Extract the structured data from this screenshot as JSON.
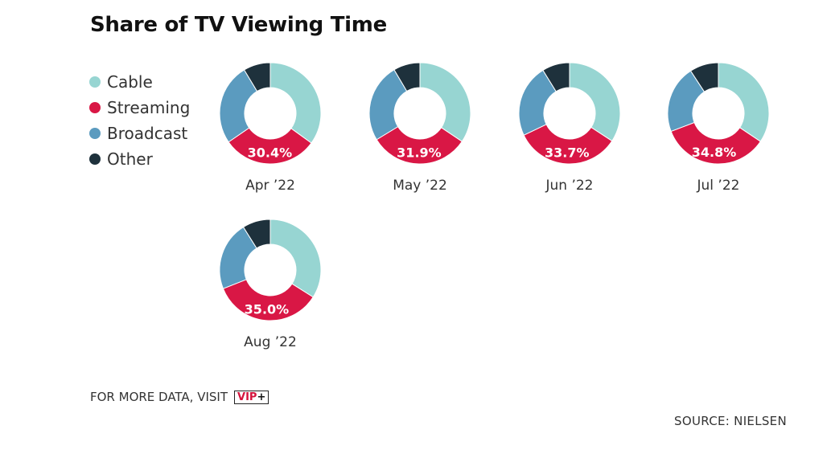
{
  "title": "Share of TV Viewing Time",
  "legend": [
    {
      "label": "Cable",
      "color": "#97d5d2"
    },
    {
      "label": "Streaming",
      "color": "#d91745"
    },
    {
      "label": "Broadcast",
      "color": "#5b9bbf"
    },
    {
      "label": "Other",
      "color": "#1e313c"
    }
  ],
  "chart_data": {
    "type": "pie",
    "style": "donut",
    "title": "Share of TV Viewing Time",
    "series_names": [
      "Cable",
      "Streaming",
      "Broadcast",
      "Other"
    ],
    "colors": [
      "#97d5d2",
      "#d91745",
      "#5b9bbf",
      "#1e313c"
    ],
    "categories": [
      "Apr ’22",
      "May ’22",
      "Jun ’22",
      "Jul ’22",
      "Aug ’22"
    ],
    "charts": [
      {
        "category": "Apr ’22",
        "values": [
          35.0,
          30.4,
          26.0,
          8.6
        ],
        "label": "30.4%"
      },
      {
        "category": "May ’22",
        "values": [
          34.4,
          31.9,
          25.2,
          8.5
        ],
        "label": "31.9%"
      },
      {
        "category": "Jun ’22",
        "values": [
          34.2,
          33.7,
          23.3,
          8.8
        ],
        "label": "33.7%"
      },
      {
        "category": "Jul ’22",
        "values": [
          34.4,
          34.8,
          21.6,
          9.2
        ],
        "label": "34.8%"
      },
      {
        "category": "Aug ’22",
        "values": [
          34.0,
          35.0,
          22.1,
          8.9
        ],
        "label": "35.0%"
      }
    ]
  },
  "footer": {
    "more_data": "FOR MORE DATA, VISIT",
    "vip_text": "VIP",
    "vip_plus": "+",
    "source": "SOURCE: NIELSEN"
  }
}
